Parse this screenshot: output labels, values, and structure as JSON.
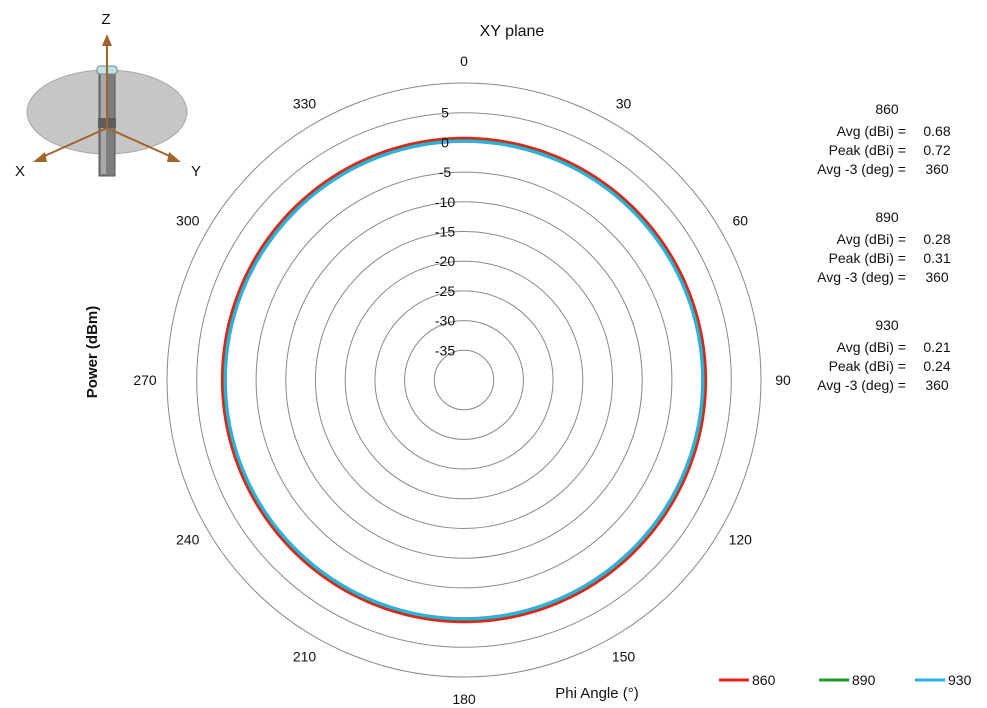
{
  "chart_data": {
    "type": "polar",
    "title": "XY plane",
    "xlabel": "Phi  Angle (°)",
    "ylabel": "Power (dBm)",
    "r_range": [
      -40,
      10
    ],
    "r_ticks": [
      5,
      0,
      -5,
      -10,
      -15,
      -20,
      -25,
      -30,
      -35
    ],
    "angle_ticks": [
      0,
      30,
      60,
      90,
      120,
      150,
      180,
      210,
      240,
      270,
      300,
      330
    ],
    "grid": true,
    "legend_position": "bottom-right",
    "series": [
      {
        "name": "860",
        "color": "#e8211b",
        "gain_dbi": 0.68,
        "angles": [
          0,
          30,
          60,
          90,
          120,
          150,
          180,
          210,
          240,
          270,
          300,
          330
        ],
        "values": [
          0.7,
          0.68,
          0.65,
          0.68,
          0.7,
          0.72,
          0.7,
          0.68,
          0.66,
          0.68,
          0.7,
          0.69
        ]
      },
      {
        "name": "890",
        "color": "#1e9e2a",
        "gain_dbi": 0.28,
        "angles": [
          0,
          30,
          60,
          90,
          120,
          150,
          180,
          210,
          240,
          270,
          300,
          330
        ],
        "values": [
          0.3,
          0.28,
          0.25,
          0.28,
          0.3,
          0.31,
          0.29,
          0.28,
          0.26,
          0.27,
          0.29,
          0.28
        ]
      },
      {
        "name": "930",
        "color": "#29b3e3",
        "gain_dbi": 0.21,
        "angles": [
          0,
          30,
          60,
          90,
          120,
          150,
          180,
          210,
          240,
          270,
          300,
          330
        ],
        "values": [
          0.22,
          0.2,
          0.18,
          0.21,
          0.23,
          0.24,
          0.22,
          0.2,
          0.19,
          0.2,
          0.22,
          0.21
        ]
      }
    ]
  },
  "stats": [
    {
      "freq": "860",
      "rows": [
        {
          "label": "Avg (dBi) =",
          "value": "0.68"
        },
        {
          "label": "Peak (dBi) =",
          "value": "0.72"
        },
        {
          "label": "Avg -3 (deg) =",
          "value": "360"
        }
      ]
    },
    {
      "freq": "890",
      "rows": [
        {
          "label": "Avg (dBi) =",
          "value": "0.28"
        },
        {
          "label": "Peak (dBi) =",
          "value": "0.31"
        },
        {
          "label": "Avg -3 (deg) =",
          "value": "360"
        }
      ]
    },
    {
      "freq": "930",
      "rows": [
        {
          "label": "Avg (dBi) =",
          "value": "0.21"
        },
        {
          "label": "Peak (dBi) =",
          "value": "0.24"
        },
        {
          "label": "Avg -3 (deg) =",
          "value": "360"
        }
      ]
    }
  ],
  "axes_icon": {
    "x": "X",
    "y": "Y",
    "z": "Z"
  }
}
